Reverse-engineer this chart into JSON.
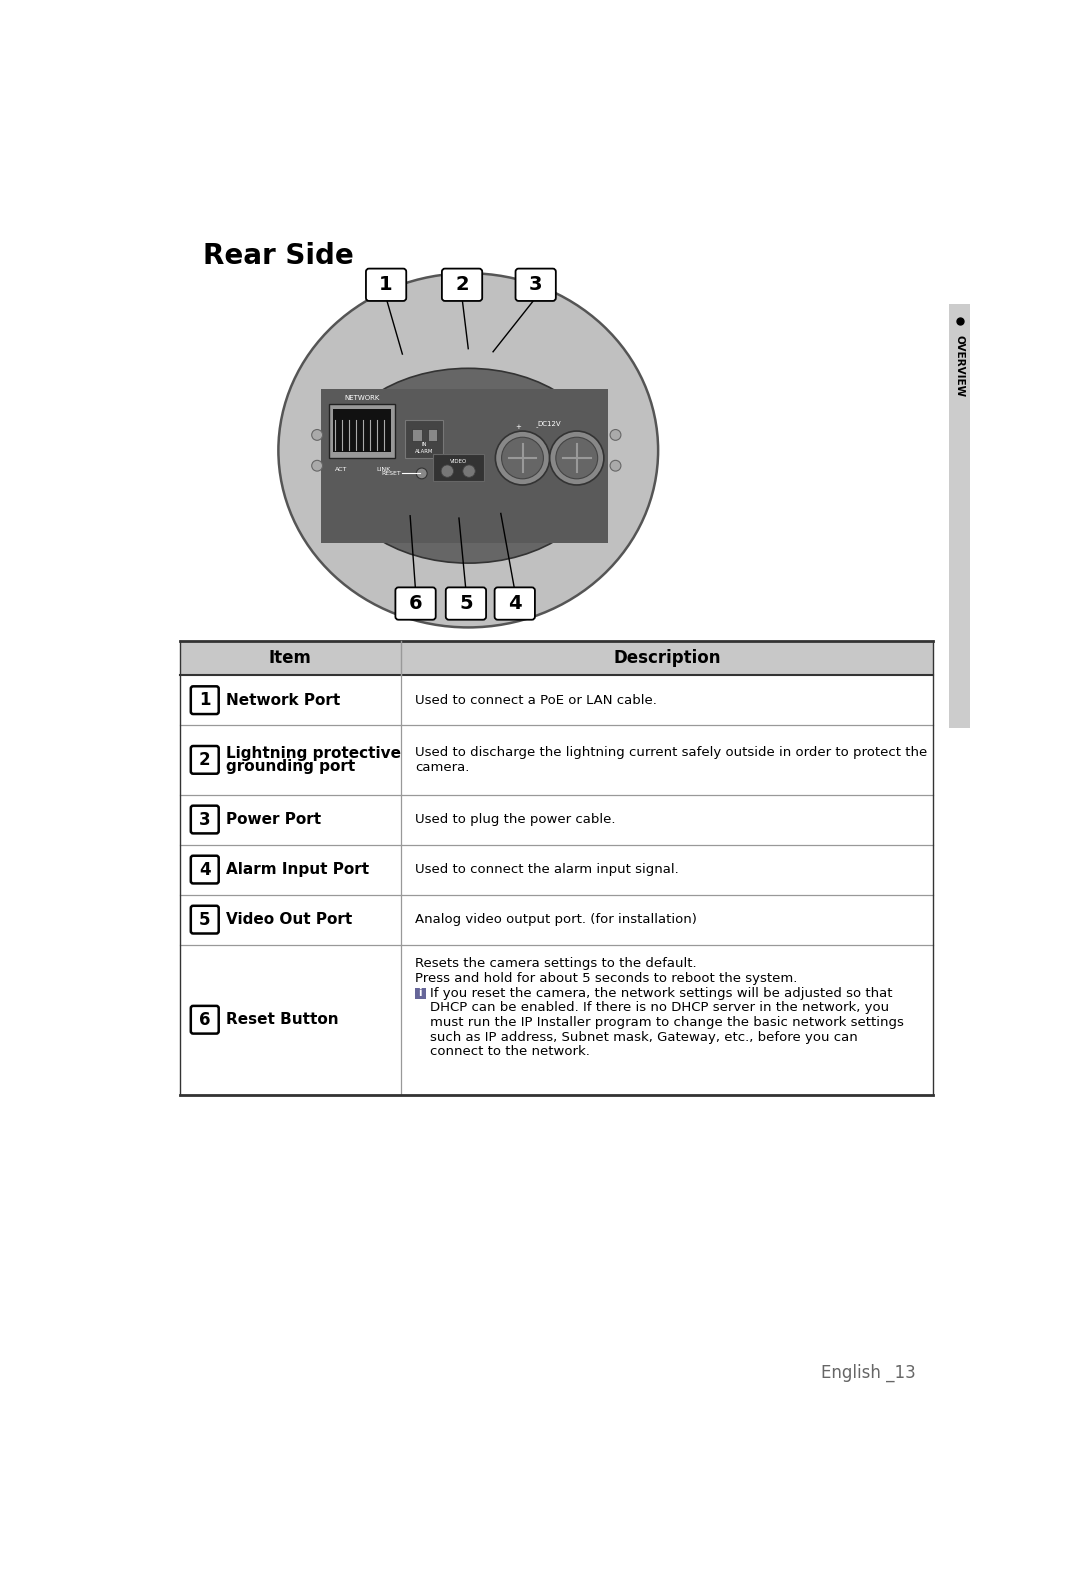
{
  "title": "Rear Side",
  "bg_color": "#ffffff",
  "page_label": "English _13",
  "sidebar_text": "OVERVIEW",
  "sidebar_color": "#cccccc",
  "table_header_bg": "#c8c8c8",
  "table_header_item": "Item",
  "table_header_desc": "Description",
  "rows": [
    {
      "num": "1",
      "item_bold": "Network Port",
      "description": "Used to connect a PoE or LAN cable."
    },
    {
      "num": "2",
      "item_bold": "Lightning protective\ngrounding port",
      "description": "Used to discharge the lightning current safely outside in order to protect the\ncamera."
    },
    {
      "num": "3",
      "item_bold": "Power Port",
      "description": "Used to plug the power cable."
    },
    {
      "num": "4",
      "item_bold": "Alarm Input Port",
      "description": "Used to connect the alarm input signal."
    },
    {
      "num": "5",
      "item_bold": "Video Out Port",
      "description": "Analog video output port. (for installation)"
    },
    {
      "num": "6",
      "item_bold": "Reset Button",
      "description": "Resets the camera settings to the default.\nPress and hold for about 5 seconds to reboot the system.\n■ If you reset the camera, the network settings will be adjusted so that\n    DHCP can be enabled. If there is no DHCP server in the network, you\n    must run the IP Installer program to change the basic network settings\n    such as IP address, Subnet mask, Gateway, etc., before you can\n    connect to the network."
    }
  ]
}
